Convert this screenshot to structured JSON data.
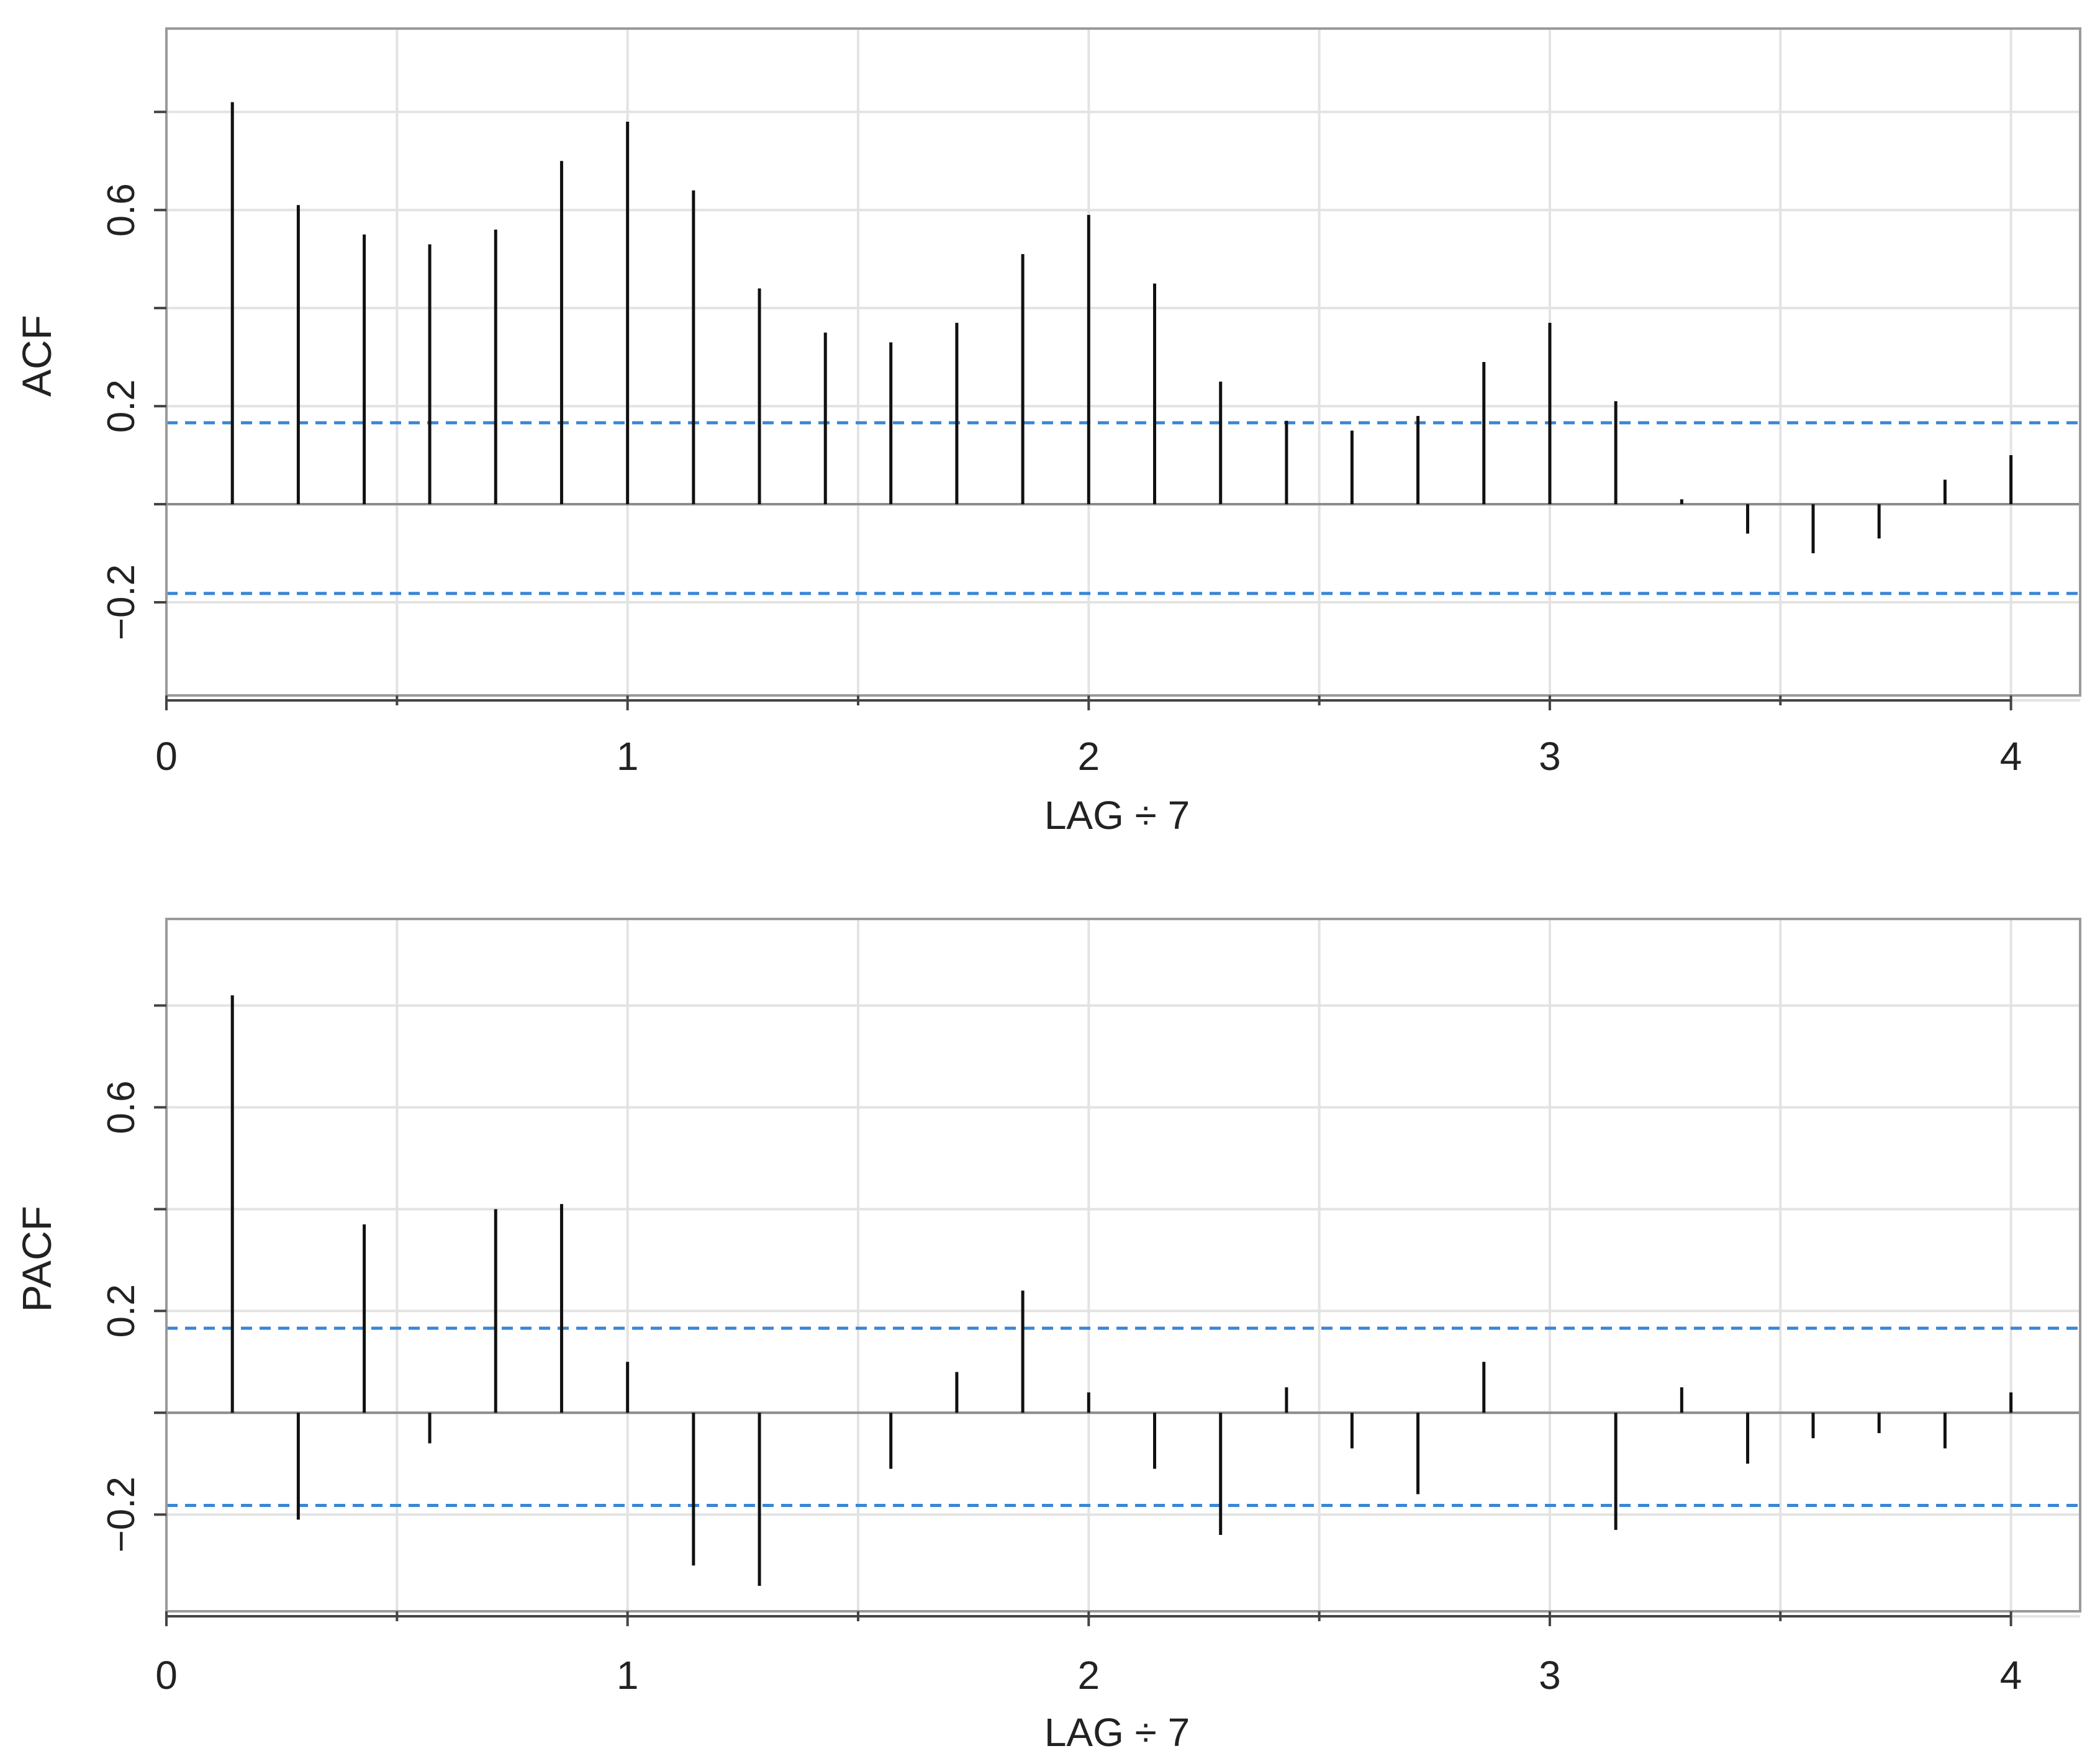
{
  "chart_data": [
    {
      "type": "bar",
      "subtype": "correlogram",
      "ylabel": "ACF",
      "xlabel": "LAG ÷ 7",
      "xlim": [
        0,
        4.15
      ],
      "ylim": [
        -0.39,
        0.97
      ],
      "xticks": [
        0,
        0.5,
        1,
        1.5,
        2,
        2.5,
        3,
        3.5,
        4
      ],
      "xtick_labels": [
        "0",
        "",
        "1",
        "",
        "2",
        "",
        "3",
        "",
        "4"
      ],
      "yticks": [
        -0.2,
        0.2,
        0.6
      ],
      "ytick_labels": [
        "−0.2",
        "0.2",
        "0.6"
      ],
      "y_gridlines": [
        -0.4,
        -0.2,
        0.0,
        0.2,
        0.4,
        0.6,
        0.8
      ],
      "grid": true,
      "confidence_bounds": [
        0.166,
        -0.182
      ],
      "x": [
        0.143,
        0.286,
        0.429,
        0.571,
        0.714,
        0.857,
        1.0,
        1.143,
        1.286,
        1.429,
        1.571,
        1.714,
        1.857,
        2.0,
        2.143,
        2.286,
        2.429,
        2.571,
        2.714,
        2.857,
        3.0,
        3.143,
        3.286,
        3.429,
        3.571,
        3.714,
        3.857,
        4.0
      ],
      "values": [
        0.82,
        0.61,
        0.55,
        0.53,
        0.56,
        0.7,
        0.78,
        0.64,
        0.44,
        0.35,
        0.33,
        0.37,
        0.51,
        0.59,
        0.45,
        0.25,
        0.17,
        0.15,
        0.18,
        0.29,
        0.37,
        0.21,
        0.01,
        -0.06,
        -0.1,
        -0.07,
        0.05,
        0.1
      ]
    },
    {
      "type": "bar",
      "subtype": "correlogram",
      "ylabel": "PACF",
      "xlabel": "LAG ÷ 7",
      "xlim": [
        0,
        4.15
      ],
      "ylim": [
        -0.39,
        0.97
      ],
      "xticks": [
        0,
        0.5,
        1,
        1.5,
        2,
        2.5,
        3,
        3.5,
        4
      ],
      "xtick_labels": [
        "0",
        "",
        "1",
        "",
        "2",
        "",
        "3",
        "",
        "4"
      ],
      "yticks": [
        -0.2,
        0.2,
        0.6
      ],
      "ytick_labels": [
        "−0.2",
        "0.2",
        "0.6"
      ],
      "y_gridlines": [
        -0.4,
        -0.2,
        0.0,
        0.2,
        0.4,
        0.6,
        0.8
      ],
      "grid": true,
      "confidence_bounds": [
        0.166,
        -0.182
      ],
      "x": [
        0.143,
        0.286,
        0.429,
        0.571,
        0.714,
        0.857,
        1.0,
        1.143,
        1.286,
        1.429,
        1.571,
        1.714,
        1.857,
        2.0,
        2.143,
        2.286,
        2.429,
        2.571,
        2.714,
        2.857,
        3.0,
        3.143,
        3.286,
        3.429,
        3.571,
        3.714,
        3.857,
        4.0
      ],
      "values": [
        0.82,
        -0.21,
        0.37,
        -0.06,
        0.4,
        0.41,
        0.1,
        -0.3,
        -0.34,
        0.0,
        -0.11,
        0.08,
        0.24,
        0.04,
        -0.11,
        -0.24,
        0.05,
        -0.07,
        -0.16,
        0.1,
        0.0,
        -0.23,
        0.05,
        -0.1,
        -0.05,
        -0.04,
        -0.07,
        0.04
      ]
    }
  ]
}
